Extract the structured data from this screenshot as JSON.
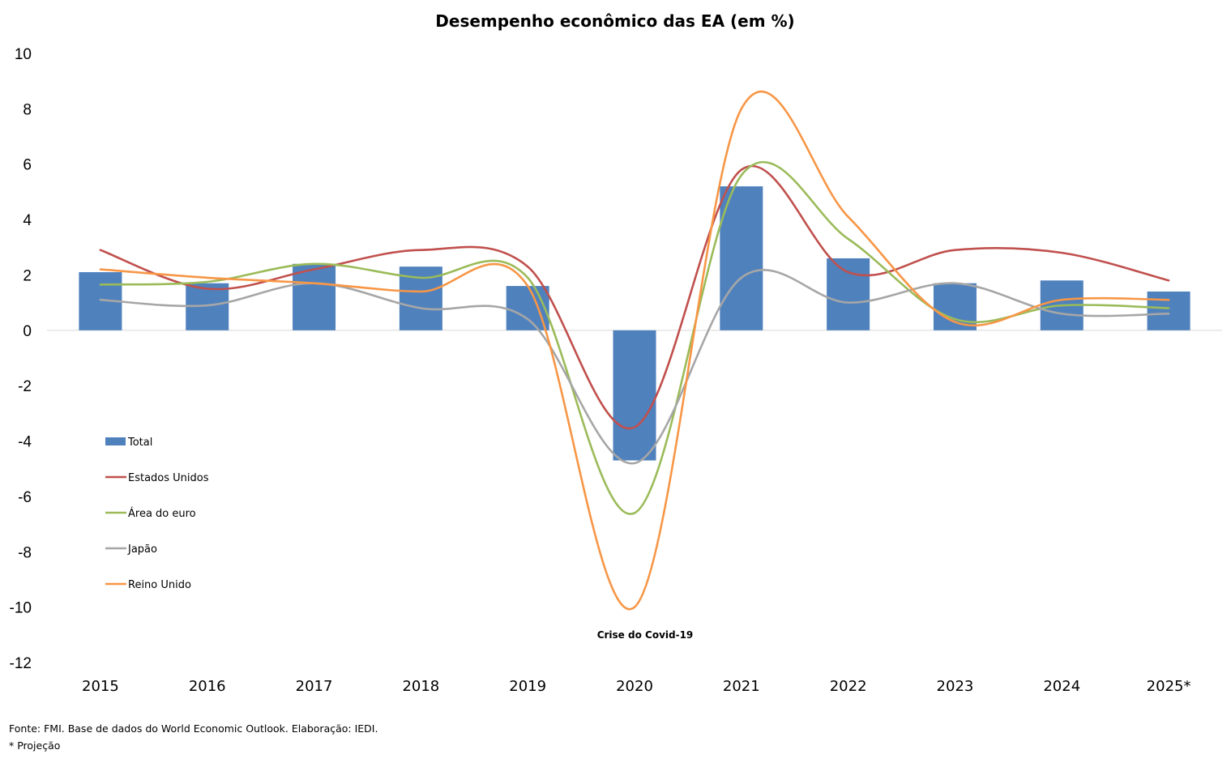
{
  "source_note": "Fonte: FMI. Base de dados do World Economic Outlook. Elaboração: IEDI.",
  "projection_note": "* Projeção",
  "chart_data": {
    "type": "bar",
    "title": "Desempenho econômico das EA (em %)",
    "xlabel": "",
    "ylabel": "",
    "ylim": [
      -12,
      10
    ],
    "yticks": [
      10,
      8,
      6,
      4,
      2,
      0,
      -2,
      -4,
      -6,
      -8,
      -10,
      -12
    ],
    "grid": false,
    "legend_position": "left",
    "categories": [
      "2015",
      "2016",
      "2017",
      "2018",
      "2019",
      "2020",
      "2021",
      "2022",
      "2023",
      "2024",
      "2025*"
    ],
    "bar_series": {
      "name": "Total",
      "color": "#4F81BD",
      "values": [
        2.1,
        1.7,
        2.4,
        2.3,
        1.6,
        -4.7,
        5.2,
        2.6,
        1.7,
        1.8,
        1.4
      ]
    },
    "line_series": [
      {
        "name": "Estados Unidos",
        "color": "#C0504D",
        "values": [
          2.9,
          1.5,
          2.2,
          2.9,
          2.3,
          -3.5,
          5.8,
          2.1,
          2.9,
          2.8,
          1.8
        ]
      },
      {
        "name": "Área do euro",
        "color": "#9BBB59",
        "values": [
          1.65,
          1.75,
          2.4,
          1.9,
          1.9,
          -6.6,
          5.6,
          3.3,
          0.4,
          0.9,
          0.8
        ]
      },
      {
        "name": "Japão",
        "color": "#A6A6A6",
        "values": [
          1.1,
          0.9,
          1.7,
          0.8,
          0.4,
          -4.8,
          1.9,
          1.0,
          1.7,
          0.6,
          0.6
        ]
      },
      {
        "name": "Reino Unido",
        "color": "#F79646",
        "values": [
          2.2,
          1.9,
          1.7,
          1.4,
          1.6,
          -10.0,
          8.0,
          4.1,
          0.3,
          1.1,
          1.1
        ]
      }
    ],
    "annotations": [
      {
        "text": "Crise do Covid-19",
        "x": "2020",
        "y": -11
      }
    ]
  }
}
